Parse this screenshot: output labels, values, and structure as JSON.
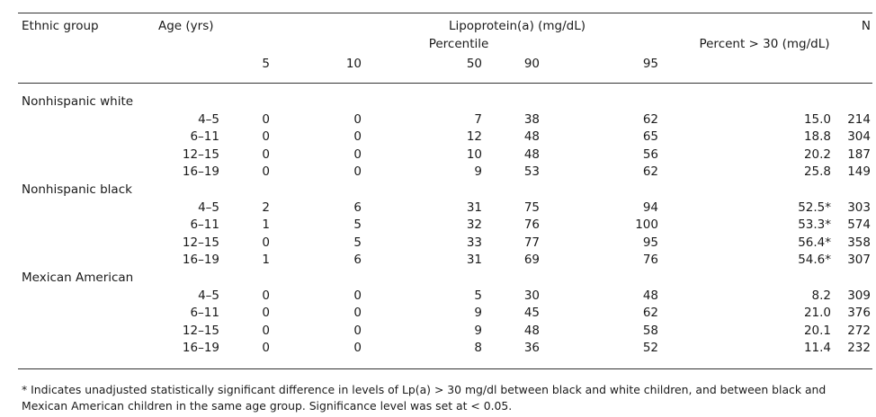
{
  "table": {
    "header": {
      "ethnic_group": "Ethnic group",
      "age": "Age (yrs)",
      "lipoprotein": "Lipoprotein(a) (mg/dL)",
      "n": "N",
      "percentile": "Percentile",
      "percent_over_30": "Percent > 30 (mg/dL)",
      "percentiles": [
        "5",
        "10",
        "50",
        "90",
        "95"
      ]
    },
    "groups": [
      {
        "name": "Nonhispanic white",
        "rows": [
          {
            "age": "4–5",
            "p5": "0",
            "p10": "0",
            "p50": "7",
            "p90": "38",
            "p95": "62",
            "pct": "15.0",
            "n": "214"
          },
          {
            "age": "6–11",
            "p5": "0",
            "p10": "0",
            "p50": "12",
            "p90": "48",
            "p95": "65",
            "pct": "18.8",
            "n": "304"
          },
          {
            "age": "12–15",
            "p5": "0",
            "p10": "0",
            "p50": "10",
            "p90": "48",
            "p95": "56",
            "pct": "20.2",
            "n": "187"
          },
          {
            "age": "16–19",
            "p5": "0",
            "p10": "0",
            "p50": "9",
            "p90": "53",
            "p95": "62",
            "pct": "25.8",
            "n": "149"
          }
        ]
      },
      {
        "name": "Nonhispanic black",
        "rows": [
          {
            "age": "4–5",
            "p5": "2",
            "p10": "6",
            "p50": "31",
            "p90": "75",
            "p95": "94",
            "pct": "52.5*",
            "n": "303"
          },
          {
            "age": "6–11",
            "p5": "1",
            "p10": "5",
            "p50": "32",
            "p90": "76",
            "p95": "100",
            "pct": "53.3*",
            "n": "574"
          },
          {
            "age": "12–15",
            "p5": "0",
            "p10": "5",
            "p50": "33",
            "p90": "77",
            "p95": "95",
            "pct": "56.4*",
            "n": "358"
          },
          {
            "age": "16–19",
            "p5": "1",
            "p10": "6",
            "p50": "31",
            "p90": "69",
            "p95": "76",
            "pct": "54.6*",
            "n": "307"
          }
        ]
      },
      {
        "name": "Mexican American",
        "rows": [
          {
            "age": "4–5",
            "p5": "0",
            "p10": "0",
            "p50": "5",
            "p90": "30",
            "p95": "48",
            "pct": "8.2",
            "n": "309"
          },
          {
            "age": "6–11",
            "p5": "0",
            "p10": "0",
            "p50": "9",
            "p90": "45",
            "p95": "62",
            "pct": "21.0",
            "n": "376"
          },
          {
            "age": "12–15",
            "p5": "0",
            "p10": "0",
            "p50": "9",
            "p90": "48",
            "p95": "58",
            "pct": "20.1",
            "n": "272"
          },
          {
            "age": "16–19",
            "p5": "0",
            "p10": "0",
            "p50": "8",
            "p90": "36",
            "p95": "52",
            "pct": "11.4",
            "n": "232"
          }
        ]
      }
    ],
    "footnote": "* Indicates unadjusted statistically significant difference in levels of Lp(a) > 30 mg/dl between black and white children, and between black and Mexican American children in the same age group. Significance level was set at < 0.05."
  }
}
